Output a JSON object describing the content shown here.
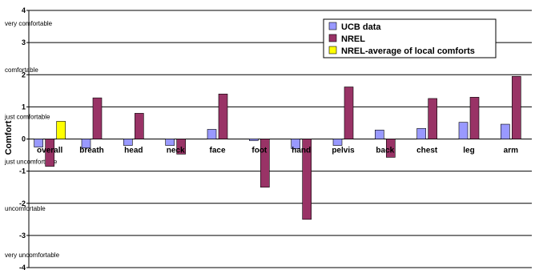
{
  "chart_data": {
    "type": "bar",
    "ylabel": "Comfort",
    "ylim": [
      -4,
      4
    ],
    "yticks": [
      -4,
      -3,
      -2,
      -1,
      0,
      1,
      2,
      3,
      4
    ],
    "grid": true,
    "legend_position": "top-right",
    "comfort_scale": [
      {
        "label": "very comfortable",
        "value": 3.6
      },
      {
        "label": "comfortable",
        "value": 2.15
      },
      {
        "label": "just comfortable",
        "value": 0.7
      },
      {
        "label": "just uncomfortable",
        "value": -0.7
      },
      {
        "label": "uncomfortable",
        "value": -2.15
      },
      {
        "label": "very uncomfortable",
        "value": -3.6
      }
    ],
    "categories": [
      "overall",
      "breath",
      "head",
      "neck",
      "face",
      "foot",
      "hand",
      "pelvis",
      "back",
      "chest",
      "leg",
      "arm"
    ],
    "series": [
      {
        "name": "UCB data",
        "color": "#9999ff",
        "values": [
          -0.25,
          -0.28,
          -0.2,
          -0.2,
          0.3,
          -0.05,
          -0.3,
          -0.2,
          0.28,
          0.33,
          0.52,
          0.46
        ]
      },
      {
        "name": "NREL",
        "color": "#993366",
        "values": [
          -0.85,
          1.28,
          0.8,
          -0.47,
          1.4,
          -1.5,
          -2.5,
          1.62,
          -0.57,
          1.26,
          1.3,
          1.95
        ]
      },
      {
        "name": "NREL-average of local comforts",
        "color": "#ffff00",
        "values": [
          0.55,
          null,
          null,
          null,
          null,
          null,
          null,
          null,
          null,
          null,
          null,
          null
        ]
      }
    ]
  }
}
